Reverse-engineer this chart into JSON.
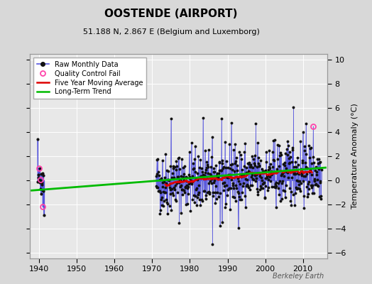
{
  "title": "OOSTENDE (AIRPORT)",
  "subtitle": "51.188 N, 2.867 E (Belgium and Luxemborg)",
  "ylabel": "Temperature Anomaly (°C)",
  "watermark": "Berkeley Earth",
  "ylim": [
    -6.5,
    10.5
  ],
  "xlim": [
    1937.5,
    2016.5
  ],
  "xticks": [
    1940,
    1950,
    1960,
    1970,
    1980,
    1990,
    2000,
    2010
  ],
  "yticks": [
    -6,
    -4,
    -2,
    0,
    2,
    4,
    6,
    8,
    10
  ],
  "background_color": "#d8d8d8",
  "plot_bg_color": "#e8e8e8",
  "raw_color": "#5555dd",
  "raw_dot_color": "#111111",
  "ma_color": "#dd0000",
  "trend_color": "#00bb00",
  "qc_color": "#ff44aa",
  "seed": 42
}
